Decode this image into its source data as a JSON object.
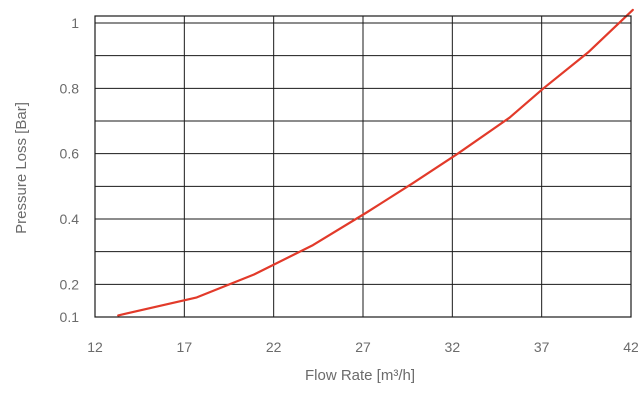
{
  "chart_data": {
    "type": "line",
    "xlabel": "Flow Rate [m³/h]",
    "ylabel": "Pressure Loss [Bar]",
    "x_ticks": [
      12,
      17,
      22,
      27,
      32,
      37,
      42
    ],
    "x_tick_labels": [
      "12",
      "17",
      "22",
      "27",
      "32",
      "37",
      "42"
    ],
    "y_ticks": [
      0.1,
      0.2,
      0.4,
      0.6,
      0.8,
      1
    ],
    "y_tick_labels": [
      "0.1",
      "0.2",
      "0.4",
      "0.6",
      "0.8",
      "1"
    ],
    "y_gridlines": [
      0.1,
      0.2,
      0.3,
      0.4,
      0.5,
      0.6,
      0.7,
      0.8,
      0.9,
      1.0,
      1.0
    ],
    "xlim": [
      12,
      42
    ],
    "ylim": [
      0.1,
      1.0
    ],
    "grid": true,
    "legend": "none",
    "series": [
      {
        "color": "#e23a2a",
        "x": [
          13.3,
          17.7,
          20.9,
          24.2,
          27.2,
          29.8,
          32.3,
          35.2,
          37.1,
          39.6,
          42.1
        ],
        "y": [
          0.105,
          0.16,
          0.23,
          0.32,
          0.42,
          0.51,
          0.6,
          0.71,
          0.8,
          0.91,
          1.04
        ]
      }
    ]
  }
}
